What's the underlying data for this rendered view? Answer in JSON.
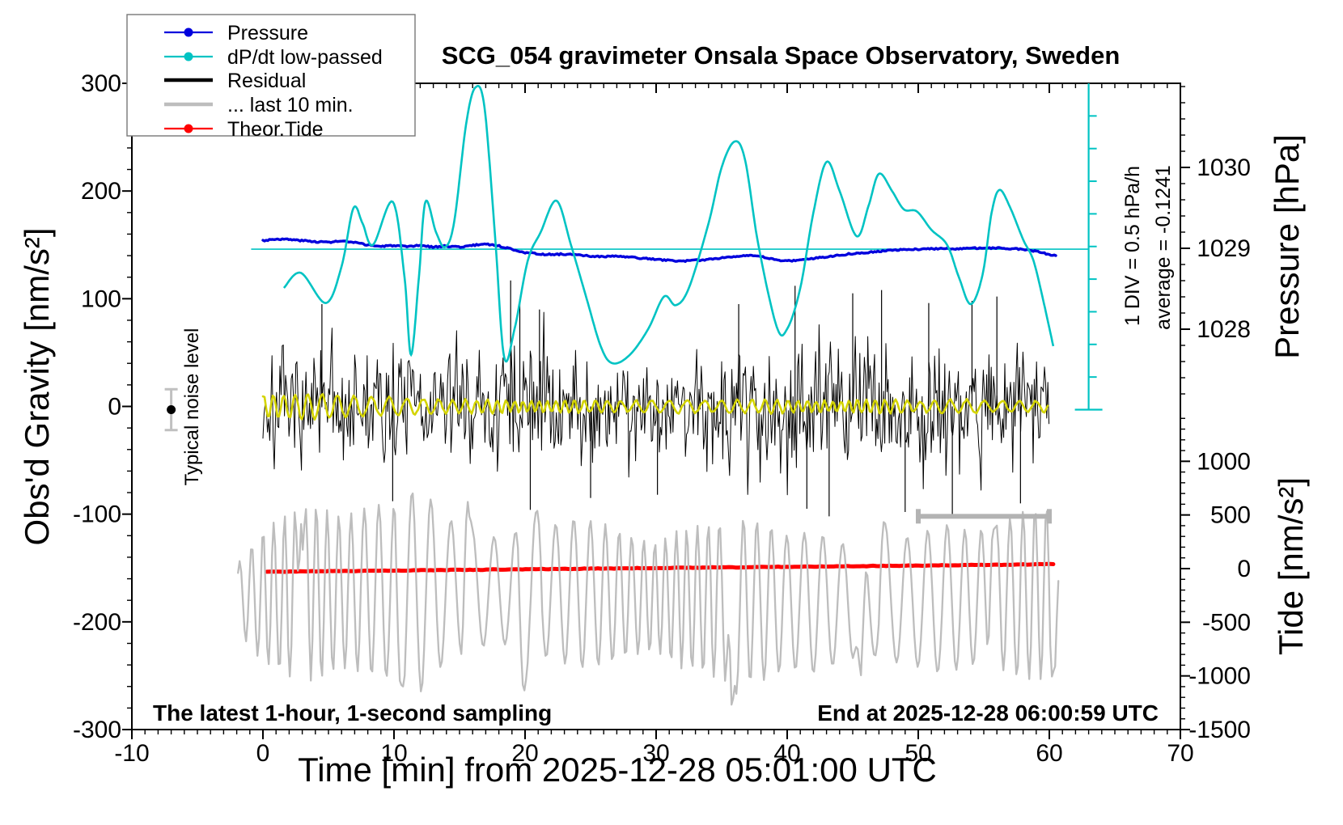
{
  "title": "SCG_054 gravimeter Onsala Space Observatory, Sweden",
  "annotations": {
    "noise_level": "Typical noise level",
    "div_scale": "1 DIV = 0.5 hPa/h",
    "average": "average = -0.1241",
    "sampling": "The latest 1-hour, 1-second sampling",
    "end_time": "End at 2025-12-28 06:00:59 UTC"
  },
  "legend": {
    "items": [
      {
        "label": "Pressure",
        "color": "#0000dd",
        "thick": false,
        "marker": true
      },
      {
        "label": "dP/dt low-passed",
        "color": "#00c3c3",
        "thick": false,
        "marker": true
      },
      {
        "label": "Residual",
        "color": "#000000",
        "thick": true,
        "marker": false
      },
      {
        "label": "... last 10 min.",
        "color": "#bdbdbd",
        "thick": true,
        "marker": false
      },
      {
        "label": "Theor.Tide",
        "color": "#ff0000",
        "thick": false,
        "marker": true
      }
    ]
  },
  "colors": {
    "pressure": "#0000dd",
    "dpdt": "#00c3c3",
    "residual": "#000000",
    "last10": "#bdbdbd",
    "tide_red": "#ff0000",
    "lowpass": "#d4d400",
    "marker_gray": "#b3b3b3",
    "axis": "#000000"
  },
  "chart_data": {
    "type": "line",
    "title": "SCG_054 gravimeter Onsala Space Observatory, Sweden",
    "xlabel": "Time [min] from 2025-12-28 05:01:00 UTC",
    "ylabel_left": "Obs'd Gravity [nm/s²]",
    "ylabel_right_top": "Pressure [hPa]",
    "ylabel_right_bottom": "Tide [nm/s²]",
    "grid": false,
    "legend_position": "top-left",
    "x_range": [
      -10,
      70
    ],
    "x_major_ticks": [
      -10,
      0,
      10,
      20,
      30,
      40,
      50,
      60,
      70
    ],
    "x_minor_step": 1,
    "y_left_range": [
      -300,
      300
    ],
    "y_left_major_ticks": [
      300,
      200,
      100,
      0,
      -100,
      -200,
      -300
    ],
    "y_left_minor_step": 20,
    "pressure_ticks": [
      1030,
      1029,
      1028
    ],
    "pressure_minor_step": 0.2,
    "tide_ticks": [
      1000,
      500,
      0,
      -500,
      -1000,
      -1500
    ],
    "tide_minor_step": 100,
    "reference_line": {
      "value": 146,
      "t_start": -0.9,
      "t_end": 63
    },
    "scale_bar": {
      "t": 63,
      "top_value": 300,
      "bottom_value": -3,
      "divisions": 10,
      "long_division": 5
    },
    "window_bar": {
      "t_start": 50,
      "t_end": 60,
      "value": -102
    },
    "noise_marker": {
      "t": -7,
      "value": -3,
      "half_error": 19
    },
    "series": [
      {
        "name": "Pressure",
        "type": "line-noisy",
        "units": "gravity-axis nm/s2 (1029 hPa = 146)",
        "seed": 3,
        "points": [
          [
            0,
            154
          ],
          [
            1,
            155.5
          ],
          [
            2,
            155
          ],
          [
            3,
            154
          ],
          [
            4,
            153
          ],
          [
            5,
            152.5
          ],
          [
            6,
            153.5
          ],
          [
            7,
            152
          ],
          [
            8,
            150
          ],
          [
            9,
            148.5
          ],
          [
            10,
            149.5
          ],
          [
            11,
            148
          ],
          [
            12,
            149.5
          ],
          [
            13,
            148
          ],
          [
            14,
            149
          ],
          [
            15,
            148
          ],
          [
            16,
            149.5
          ],
          [
            17,
            151
          ],
          [
            18,
            149
          ],
          [
            19,
            146
          ],
          [
            20,
            143
          ],
          [
            21,
            141.5
          ],
          [
            22,
            141
          ],
          [
            23,
            141.5
          ],
          [
            24,
            140.5
          ],
          [
            25,
            139.5
          ],
          [
            26,
            139
          ],
          [
            27,
            139.5
          ],
          [
            28,
            138.5
          ],
          [
            29,
            137.5
          ],
          [
            30,
            136.5
          ],
          [
            31,
            135.5
          ],
          [
            32,
            135
          ],
          [
            33,
            135.5
          ],
          [
            34,
            136.5
          ],
          [
            35,
            138
          ],
          [
            36,
            139.5
          ],
          [
            37,
            140
          ],
          [
            38,
            139
          ],
          [
            39,
            136.5
          ],
          [
            40,
            135
          ],
          [
            41,
            136
          ],
          [
            42,
            137.5
          ],
          [
            43,
            139
          ],
          [
            44,
            140.5
          ],
          [
            45,
            142
          ],
          [
            46,
            143
          ],
          [
            47,
            144
          ],
          [
            48,
            145
          ],
          [
            49,
            145.5
          ],
          [
            50,
            146
          ],
          [
            51,
            146.5
          ],
          [
            52,
            146.5
          ],
          [
            53,
            146.5
          ],
          [
            54,
            147
          ],
          [
            55,
            147
          ],
          [
            56,
            147
          ],
          [
            57,
            146.5
          ],
          [
            58,
            146
          ],
          [
            59,
            144
          ],
          [
            60,
            141
          ],
          [
            60.5,
            140
          ]
        ]
      },
      {
        "name": "dP/dt low-passed",
        "type": "smooth",
        "points": [
          [
            1.6,
            110
          ],
          [
            2.9,
            124
          ],
          [
            4.8,
            96
          ],
          [
            6,
            130
          ],
          [
            6.9,
            184
          ],
          [
            7.6,
            170
          ],
          [
            8.4,
            150
          ],
          [
            9.9,
            190
          ],
          [
            10.8,
            120
          ],
          [
            11.3,
            48
          ],
          [
            11.9,
            120
          ],
          [
            12.4,
            190
          ],
          [
            13.2,
            162
          ],
          [
            13.9,
            148
          ],
          [
            14.6,
            172
          ],
          [
            15.5,
            262
          ],
          [
            16.2,
            296
          ],
          [
            16.9,
            278
          ],
          [
            17.7,
            160
          ],
          [
            18.4,
            46
          ],
          [
            19.2,
            72
          ],
          [
            20.2,
            135
          ],
          [
            21.2,
            162
          ],
          [
            22.4,
            191
          ],
          [
            23.5,
            150
          ],
          [
            24.7,
            100
          ],
          [
            25.8,
            55
          ],
          [
            26.7,
            40
          ],
          [
            28,
            48
          ],
          [
            29.4,
            72
          ],
          [
            30.6,
            102
          ],
          [
            31.5,
            94
          ],
          [
            32.5,
            110
          ],
          [
            34,
            170
          ],
          [
            35,
            222
          ],
          [
            36,
            246
          ],
          [
            36.8,
            228
          ],
          [
            37.8,
            150
          ],
          [
            39.2,
            74
          ],
          [
            40,
            72
          ],
          [
            41,
            110
          ],
          [
            42,
            180
          ],
          [
            43,
            227
          ],
          [
            44,
            200
          ],
          [
            45.3,
            158
          ],
          [
            46.2,
            186
          ],
          [
            47,
            216
          ],
          [
            48,
            200
          ],
          [
            48.9,
            183
          ],
          [
            49.9,
            181
          ],
          [
            51,
            164
          ],
          [
            52.2,
            150
          ],
          [
            53.1,
            120
          ],
          [
            54,
            95
          ],
          [
            54.9,
            122
          ],
          [
            55.6,
            180
          ],
          [
            56.2,
            201
          ],
          [
            57,
            185
          ],
          [
            58,
            155
          ],
          [
            58.8,
            135
          ],
          [
            59.6,
            95
          ],
          [
            60.3,
            56
          ]
        ]
      },
      {
        "name": "Residual",
        "type": "noise-band",
        "center": 0,
        "t_start": 0,
        "t_end": 60,
        "envelope_t0": 0,
        "envelope_dt": 2,
        "envelope": [
          82,
          66,
          62,
          64,
          60,
          68,
          60,
          58,
          66,
          86,
          92,
          78,
          64,
          60,
          66,
          62,
          60,
          64,
          78,
          72,
          84,
          86,
          80,
          72,
          80,
          78,
          82,
          76,
          80,
          72,
          66
        ],
        "spikes": [
          [
            4.5,
            95
          ],
          [
            9.9,
            -88
          ],
          [
            18.9,
            117
          ],
          [
            19.6,
            100
          ],
          [
            20.4,
            -96
          ],
          [
            21.1,
            90
          ],
          [
            25,
            -85
          ],
          [
            30.1,
            -82
          ],
          [
            36.3,
            95
          ],
          [
            40.6,
            112
          ],
          [
            41.5,
            -95
          ],
          [
            43.2,
            -102
          ],
          [
            45,
            105
          ],
          [
            47.2,
            108
          ],
          [
            49,
            -98
          ],
          [
            50.8,
            96
          ],
          [
            52.6,
            -100
          ],
          [
            54.1,
            98
          ],
          [
            56,
            102
          ],
          [
            57.8,
            -90
          ]
        ],
        "seed": 7
      },
      {
        "name": "... last 10 min.",
        "type": "oscillation",
        "center": -176,
        "t_start": -1.9,
        "t_end": 60.7,
        "envelope_t0": -2,
        "envelope_dt": 2,
        "envelope": [
          30,
          62,
          76,
          82,
          70,
          78,
          82,
          96,
          66,
          56,
          48,
          58,
          62,
          70,
          66,
          56,
          50,
          66,
          70,
          78,
          74,
          62,
          66,
          56,
          48,
          56,
          62,
          70,
          62,
          66,
          78,
          80,
          50
        ],
        "spikes_down": [
          [
            10.5,
            -262
          ],
          [
            19.9,
            -269
          ],
          [
            35.8,
            -296
          ],
          [
            45.6,
            -257
          ],
          [
            60.4,
            -251
          ]
        ],
        "spikes_up": [
          [
            2.9,
            -104
          ],
          [
            15.6,
            -83
          ],
          [
            20.9,
            -95
          ],
          [
            47.4,
            -104
          ],
          [
            55.7,
            -108
          ]
        ],
        "seed": 11
      },
      {
        "name": "Residual low-passed",
        "type": "oscillation",
        "center": 0,
        "t_start": 0,
        "t_end": 59.9,
        "envelope_t0": 0,
        "envelope_dt": 2,
        "envelope": [
          10,
          11,
          12,
          10,
          9,
          8,
          7,
          6,
          6,
          6,
          5,
          5,
          6,
          5,
          5,
          6,
          6,
          5,
          6,
          6,
          6,
          5,
          5,
          6,
          6,
          5,
          6,
          6,
          5,
          5,
          5
        ],
        "spikes_down": [],
        "spikes_up": [],
        "seed": 5
      },
      {
        "name": "Theor.Tide",
        "type": "line-thick",
        "points": [
          [
            0.3,
            -153.5
          ],
          [
            60.4,
            -146.5
          ]
        ]
      }
    ]
  }
}
